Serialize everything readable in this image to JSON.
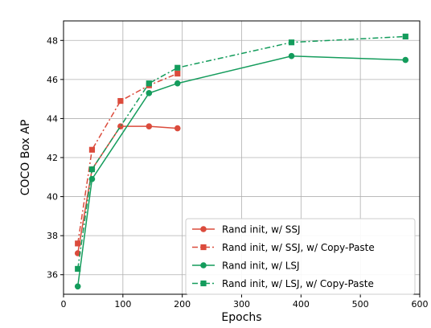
{
  "chart_data": {
    "type": "line",
    "xlabel": "Epochs",
    "ylabel": "COCO Box AP",
    "xlim": [
      0,
      600
    ],
    "ylim": [
      35,
      49
    ],
    "xticks": [
      0,
      100,
      200,
      300,
      400,
      500,
      600
    ],
    "yticks": [
      36,
      38,
      40,
      42,
      44,
      46,
      48
    ],
    "grid": true,
    "legend_position": "lower-right",
    "series": [
      {
        "name": "Rand init, w/ SSJ",
        "color": "#db4b3c",
        "line_style": "solid",
        "marker": "circle",
        "x": [
          24,
          48,
          96,
          144,
          192
        ],
        "y": [
          37.1,
          41.4,
          43.6,
          43.6,
          43.5
        ]
      },
      {
        "name": "Rand init, w/ SSJ, w/ Copy-Paste",
        "color": "#db4b3c",
        "line_style": "dashdot",
        "marker": "square",
        "x": [
          24,
          48,
          96,
          144,
          192
        ],
        "y": [
          37.6,
          42.4,
          44.9,
          45.7,
          46.3
        ]
      },
      {
        "name": "Rand init, w/ LSJ",
        "color": "#149c5c",
        "line_style": "solid",
        "marker": "circle",
        "x": [
          24,
          48,
          144,
          192,
          384,
          576
        ],
        "y": [
          35.4,
          40.9,
          45.3,
          45.8,
          47.2,
          47.0
        ]
      },
      {
        "name": "Rand init, w/ LSJ, w/ Copy-Paste",
        "color": "#149c5c",
        "line_style": "dashdot",
        "marker": "square",
        "x": [
          24,
          48,
          144,
          192,
          384,
          576
        ],
        "y": [
          36.3,
          41.4,
          45.8,
          46.6,
          47.9,
          48.2
        ]
      }
    ]
  }
}
